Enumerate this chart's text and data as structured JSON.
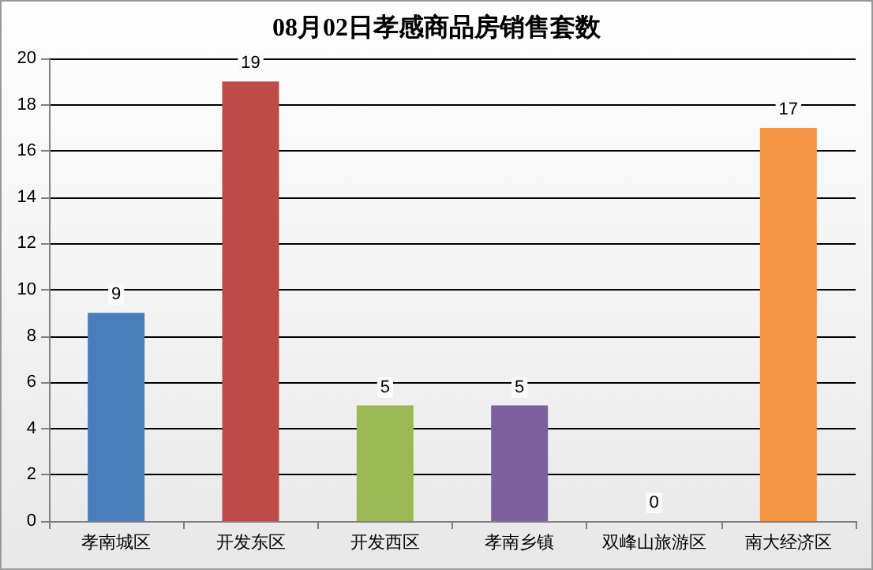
{
  "chart_data": {
    "type": "bar",
    "title": "08月02日孝感商品房销售套数",
    "categories": [
      "孝南城区",
      "开发东区",
      "开发西区",
      "孝南乡镇",
      "双峰山旅游区",
      "南大经济区"
    ],
    "values": [
      9,
      19,
      5,
      5,
      0,
      17
    ],
    "colors": [
      "#4a7ebb",
      "#be4b48",
      "#98b954",
      "#7d60a0",
      "#4bacc6",
      "#f79646"
    ],
    "ylim": [
      0,
      20
    ],
    "yticks": [
      0,
      2,
      4,
      6,
      8,
      10,
      12,
      14,
      16,
      18,
      20
    ],
    "grid": "y",
    "data_labels": true
  }
}
